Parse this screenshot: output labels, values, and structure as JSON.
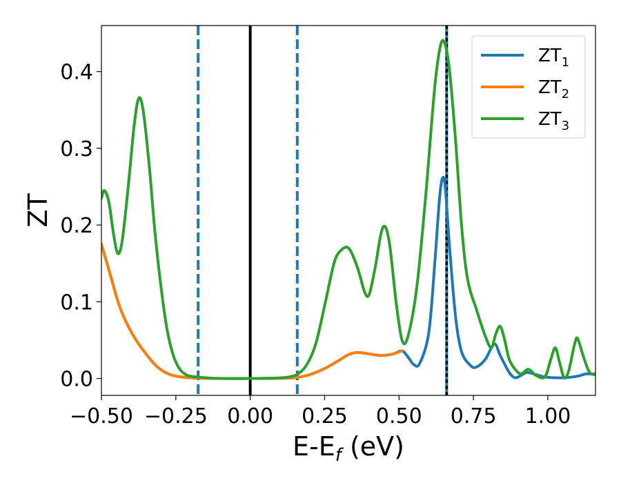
{
  "chart_data": {
    "type": "line",
    "xlabel_main": "E-E",
    "xlabel_sub": "f",
    "xlabel_tail": " (eV)",
    "ylabel": "ZT",
    "xlim": [
      -0.5,
      1.16
    ],
    "ylim": [
      -0.022,
      0.46
    ],
    "x_ticks": [
      -0.5,
      -0.25,
      0.0,
      0.25,
      0.5,
      0.75,
      1.0
    ],
    "x_tick_labels": [
      "−0.50",
      "−0.25",
      "0.00",
      "0.25",
      "0.50",
      "0.75",
      "1.00"
    ],
    "y_ticks": [
      0.0,
      0.1,
      0.2,
      0.3,
      0.4
    ],
    "y_tick_labels": [
      "0.0",
      "0.1",
      "0.2",
      "0.3",
      "0.4"
    ],
    "legend_position": "upper-right",
    "series": [
      {
        "name_main": "ZT",
        "name_sub": "1",
        "color": "#1f77b4",
        "points": [
          [
            -0.5,
            0.175
          ],
          [
            -0.47,
            0.135
          ],
          [
            -0.44,
            0.095
          ],
          [
            -0.41,
            0.068
          ],
          [
            -0.38,
            0.048
          ],
          [
            -0.35,
            0.032
          ],
          [
            -0.32,
            0.018
          ],
          [
            -0.29,
            0.009
          ],
          [
            -0.26,
            0.004
          ],
          [
            -0.22,
            0.0015
          ],
          [
            -0.18,
            0.0005
          ],
          [
            -0.1,
            0.0
          ],
          [
            0.0,
            0.0
          ],
          [
            0.1,
            0.0003
          ],
          [
            0.15,
            0.001
          ],
          [
            0.2,
            0.005
          ],
          [
            0.25,
            0.013
          ],
          [
            0.3,
            0.024
          ],
          [
            0.33,
            0.031
          ],
          [
            0.36,
            0.034
          ],
          [
            0.4,
            0.032
          ],
          [
            0.44,
            0.03
          ],
          [
            0.48,
            0.032
          ],
          [
            0.51,
            0.036
          ],
          [
            0.53,
            0.028
          ],
          [
            0.55,
            0.018
          ],
          [
            0.57,
            0.02
          ],
          [
            0.6,
            0.06
          ],
          [
            0.62,
            0.15
          ],
          [
            0.635,
            0.23
          ],
          [
            0.645,
            0.26
          ],
          [
            0.655,
            0.25
          ],
          [
            0.67,
            0.17
          ],
          [
            0.69,
            0.08
          ],
          [
            0.71,
            0.035
          ],
          [
            0.74,
            0.017
          ],
          [
            0.76,
            0.015
          ],
          [
            0.79,
            0.025
          ],
          [
            0.82,
            0.045
          ],
          [
            0.84,
            0.03
          ],
          [
            0.87,
            0.008
          ],
          [
            0.89,
            0.001
          ],
          [
            0.91,
            0.004
          ],
          [
            0.93,
            0.008
          ],
          [
            0.96,
            0.005
          ],
          [
            0.99,
            0.002
          ],
          [
            1.02,
            0.001
          ],
          [
            1.06,
            0.001
          ],
          [
            1.1,
            0.003
          ],
          [
            1.13,
            0.006
          ],
          [
            1.16,
            0.005
          ]
        ]
      },
      {
        "name_main": "ZT",
        "name_sub": "2",
        "color": "#ff7f0e",
        "points": [
          [
            -0.5,
            0.175
          ],
          [
            -0.47,
            0.135
          ],
          [
            -0.44,
            0.095
          ],
          [
            -0.41,
            0.068
          ],
          [
            -0.38,
            0.048
          ],
          [
            -0.35,
            0.032
          ],
          [
            -0.32,
            0.018
          ],
          [
            -0.29,
            0.009
          ],
          [
            -0.26,
            0.004
          ],
          [
            -0.22,
            0.0015
          ],
          [
            -0.18,
            0.0005
          ],
          [
            -0.1,
            0.0
          ],
          [
            0.0,
            0.0
          ],
          [
            0.1,
            0.0003
          ],
          [
            0.15,
            0.001
          ],
          [
            0.2,
            0.005
          ],
          [
            0.25,
            0.013
          ],
          [
            0.3,
            0.024
          ],
          [
            0.33,
            0.031
          ],
          [
            0.36,
            0.034
          ],
          [
            0.4,
            0.032
          ],
          [
            0.44,
            0.03
          ],
          [
            0.48,
            0.032
          ],
          [
            0.51,
            0.036
          ]
        ]
      },
      {
        "name_main": "ZT",
        "name_sub": "3",
        "color": "#2ca02c",
        "points": [
          [
            -0.5,
            0.235
          ],
          [
            -0.49,
            0.245
          ],
          [
            -0.475,
            0.23
          ],
          [
            -0.46,
            0.19
          ],
          [
            -0.445,
            0.163
          ],
          [
            -0.43,
            0.18
          ],
          [
            -0.41,
            0.25
          ],
          [
            -0.39,
            0.33
          ],
          [
            -0.375,
            0.365
          ],
          [
            -0.36,
            0.35
          ],
          [
            -0.34,
            0.28
          ],
          [
            -0.32,
            0.19
          ],
          [
            -0.3,
            0.12
          ],
          [
            -0.28,
            0.065
          ],
          [
            -0.26,
            0.032
          ],
          [
            -0.24,
            0.014
          ],
          [
            -0.22,
            0.006
          ],
          [
            -0.2,
            0.003
          ],
          [
            -0.15,
            0.001
          ],
          [
            -0.1,
            0.0
          ],
          [
            0.0,
            0.0
          ],
          [
            0.08,
            0.0005
          ],
          [
            0.13,
            0.002
          ],
          [
            0.16,
            0.006
          ],
          [
            0.19,
            0.018
          ],
          [
            0.22,
            0.045
          ],
          [
            0.25,
            0.095
          ],
          [
            0.28,
            0.148
          ],
          [
            0.3,
            0.165
          ],
          [
            0.33,
            0.17
          ],
          [
            0.36,
            0.145
          ],
          [
            0.385,
            0.112
          ],
          [
            0.4,
            0.11
          ],
          [
            0.42,
            0.145
          ],
          [
            0.44,
            0.19
          ],
          [
            0.455,
            0.197
          ],
          [
            0.47,
            0.17
          ],
          [
            0.49,
            0.1
          ],
          [
            0.51,
            0.05
          ],
          [
            0.53,
            0.055
          ],
          [
            0.56,
            0.12
          ],
          [
            0.59,
            0.24
          ],
          [
            0.62,
            0.38
          ],
          [
            0.64,
            0.435
          ],
          [
            0.655,
            0.435
          ],
          [
            0.67,
            0.4
          ],
          [
            0.69,
            0.31
          ],
          [
            0.71,
            0.2
          ],
          [
            0.73,
            0.13
          ],
          [
            0.76,
            0.09
          ],
          [
            0.79,
            0.055
          ],
          [
            0.81,
            0.04
          ],
          [
            0.825,
            0.058
          ],
          [
            0.84,
            0.068
          ],
          [
            0.855,
            0.05
          ],
          [
            0.87,
            0.025
          ],
          [
            0.89,
            0.012
          ],
          [
            0.91,
            0.006
          ],
          [
            0.935,
            0.012
          ],
          [
            0.96,
            0.004
          ],
          [
            0.99,
            0.002
          ],
          [
            1.01,
            0.025
          ],
          [
            1.025,
            0.04
          ],
          [
            1.04,
            0.02
          ],
          [
            1.055,
            0.001
          ],
          [
            1.07,
            0.01
          ],
          [
            1.09,
            0.045
          ],
          [
            1.1,
            0.052
          ],
          [
            1.12,
            0.028
          ],
          [
            1.14,
            0.008
          ],
          [
            1.16,
            0.006
          ]
        ]
      }
    ],
    "vertical_lines": [
      {
        "x": -0.175,
        "color": "#1f77b4",
        "style": "dashed"
      },
      {
        "x": 0.0,
        "color": "#000000",
        "style": "solid"
      },
      {
        "x": 0.158,
        "color": "#1f77b4",
        "style": "dashed"
      },
      {
        "x": 0.66,
        "color": "#1f77b4",
        "style": "solid"
      },
      {
        "x": 0.66,
        "color": "#000000",
        "style": "dotted"
      }
    ]
  }
}
